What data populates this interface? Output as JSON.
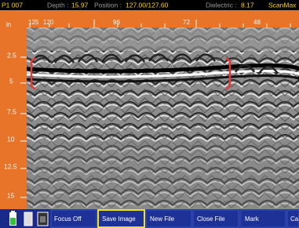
{
  "header": {
    "file": "P1 007",
    "depth_label": "Depth :",
    "depth": "15.97",
    "position_label": "Position :",
    "position": "127.00/127.60",
    "dielectric_label": "Dielectric :",
    "dielectric": "8.17",
    "mode": "ScanMax"
  },
  "ruler": {
    "unit": "in",
    "labels": [
      "125",
      "120",
      "96",
      "72",
      "48"
    ]
  },
  "depth_axis": {
    "labels": [
      "2.5",
      "5",
      "7.5",
      "10",
      "12.5",
      "15"
    ]
  },
  "toolbar": {
    "buttons": [
      "Focus Off",
      "Save Image",
      "New File",
      "Close File",
      "Mark",
      "Ca"
    ]
  }
}
